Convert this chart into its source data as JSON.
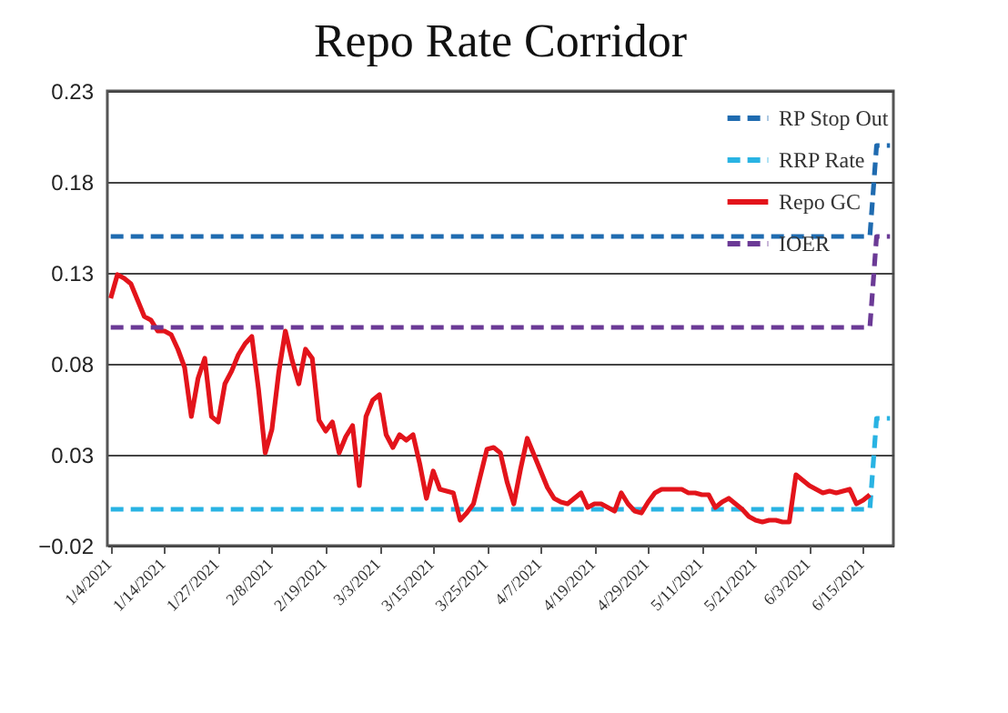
{
  "chart_data": {
    "type": "line",
    "title": "Repo Rate Corridor",
    "categories": [
      "1/4/2021",
      null,
      null,
      null,
      null,
      null,
      null,
      null,
      "1/14/2021",
      null,
      null,
      null,
      null,
      null,
      null,
      null,
      "1/27/2021",
      null,
      null,
      null,
      null,
      null,
      null,
      null,
      "2/8/2021",
      null,
      null,
      null,
      null,
      null,
      null,
      null,
      "2/19/2021",
      null,
      null,
      null,
      null,
      null,
      null,
      null,
      "3/3/2021",
      null,
      null,
      null,
      null,
      null,
      null,
      null,
      "3/15/2021",
      null,
      null,
      null,
      null,
      null,
      null,
      null,
      "3/25/2021",
      null,
      null,
      null,
      null,
      null,
      null,
      null,
      "4/7/2021",
      null,
      null,
      null,
      null,
      null,
      null,
      null,
      "4/19/2021",
      null,
      null,
      null,
      null,
      null,
      null,
      null,
      "4/29/2021",
      null,
      null,
      null,
      null,
      null,
      null,
      null,
      "5/11/2021",
      null,
      null,
      null,
      null,
      null,
      null,
      null,
      "5/21/2021",
      null,
      null,
      null,
      null,
      null,
      null,
      null,
      "6/3/2021",
      null,
      null,
      null,
      null,
      null,
      null,
      null,
      "6/15/2021",
      null,
      null,
      null,
      null
    ],
    "series": [
      {
        "name": "RP Stop Out",
        "color": "#1f6bb0",
        "line_style": "dashed",
        "values": [
          0.15,
          0.15,
          0.15,
          0.15,
          0.15,
          0.15,
          0.15,
          0.15,
          0.15,
          0.15,
          0.15,
          0.15,
          0.15,
          0.15,
          0.15,
          0.15,
          0.15,
          0.15,
          0.15,
          0.15,
          0.15,
          0.15,
          0.15,
          0.15,
          0.15,
          0.15,
          0.15,
          0.15,
          0.15,
          0.15,
          0.15,
          0.15,
          0.15,
          0.15,
          0.15,
          0.15,
          0.15,
          0.15,
          0.15,
          0.15,
          0.15,
          0.15,
          0.15,
          0.15,
          0.15,
          0.15,
          0.15,
          0.15,
          0.15,
          0.15,
          0.15,
          0.15,
          0.15,
          0.15,
          0.15,
          0.15,
          0.15,
          0.15,
          0.15,
          0.15,
          0.15,
          0.15,
          0.15,
          0.15,
          0.15,
          0.15,
          0.15,
          0.15,
          0.15,
          0.15,
          0.15,
          0.15,
          0.15,
          0.15,
          0.15,
          0.15,
          0.15,
          0.15,
          0.15,
          0.15,
          0.15,
          0.15,
          0.15,
          0.15,
          0.15,
          0.15,
          0.15,
          0.15,
          0.15,
          0.15,
          0.15,
          0.15,
          0.15,
          0.15,
          0.15,
          0.15,
          0.15,
          0.15,
          0.15,
          0.15,
          0.15,
          0.15,
          0.15,
          0.15,
          0.15,
          0.15,
          0.15,
          0.15,
          0.15,
          0.15,
          0.15,
          0.15,
          0.15,
          0.15,
          0.2,
          0.2,
          0.2
        ]
      },
      {
        "name": "RRP Rate",
        "color": "#29b3e3",
        "line_style": "dashed",
        "values": [
          0,
          0,
          0,
          0,
          0,
          0,
          0,
          0,
          0,
          0,
          0,
          0,
          0,
          0,
          0,
          0,
          0,
          0,
          0,
          0,
          0,
          0,
          0,
          0,
          0,
          0,
          0,
          0,
          0,
          0,
          0,
          0,
          0,
          0,
          0,
          0,
          0,
          0,
          0,
          0,
          0,
          0,
          0,
          0,
          0,
          0,
          0,
          0,
          0,
          0,
          0,
          0,
          0,
          0,
          0,
          0,
          0,
          0,
          0,
          0,
          0,
          0,
          0,
          0,
          0,
          0,
          0,
          0,
          0,
          0,
          0,
          0,
          0,
          0,
          0,
          0,
          0,
          0,
          0,
          0,
          0,
          0,
          0,
          0,
          0,
          0,
          0,
          0,
          0,
          0,
          0,
          0,
          0,
          0,
          0,
          0,
          0,
          0,
          0,
          0,
          0,
          0,
          0,
          0,
          0,
          0,
          0,
          0,
          0,
          0,
          0,
          0,
          0,
          0,
          0.05,
          0.05,
          0.05
        ]
      },
      {
        "name": "Repo GC",
        "color": "#e3141b",
        "line_style": "solid",
        "values": [
          0.116,
          0.129,
          0.127,
          0.124,
          0.115,
          0.106,
          0.104,
          0.098,
          0.098,
          0.096,
          0.088,
          0.078,
          0.051,
          0.072,
          0.083,
          0.051,
          0.048,
          0.069,
          0.076,
          0.085,
          0.091,
          0.095,
          0.066,
          0.031,
          0.044,
          0.075,
          0.098,
          0.082,
          0.069,
          0.088,
          0.083,
          0.049,
          0.043,
          0.048,
          0.031,
          0.04,
          0.046,
          0.013,
          0.051,
          0.06,
          0.063,
          0.041,
          0.034,
          0.041,
          0.038,
          0.041,
          0.025,
          0.006,
          0.021,
          0.011,
          0.01,
          0.009,
          -0.006,
          -0.002,
          0.003,
          0.018,
          0.033,
          0.034,
          0.031,
          0.015,
          0.003,
          0.022,
          0.039,
          0.03,
          0.021,
          0.012,
          0.006,
          0.004,
          0.003,
          0.006,
          0.009,
          0.001,
          0.003,
          0.003,
          0.001,
          -0.001,
          0.009,
          0.003,
          -0.001,
          -0.002,
          0.004,
          0.009,
          0.011,
          0.011,
          0.011,
          0.011,
          0.009,
          0.009,
          0.008,
          0.008,
          0.001,
          0.004,
          0.006,
          0.003,
          0.0,
          -0.004,
          -0.006,
          -0.007,
          -0.006,
          -0.006,
          -0.007,
          -0.007,
          0.019,
          0.016,
          0.013,
          0.011,
          0.009,
          0.01,
          0.009,
          0.01,
          0.011,
          0.003,
          0.005,
          0.008,
          null,
          null,
          null
        ]
      },
      {
        "name": "IOER",
        "color": "#6b3a96",
        "line_style": "dashed",
        "values": [
          0.1,
          0.1,
          0.1,
          0.1,
          0.1,
          0.1,
          0.1,
          0.1,
          0.1,
          0.1,
          0.1,
          0.1,
          0.1,
          0.1,
          0.1,
          0.1,
          0.1,
          0.1,
          0.1,
          0.1,
          0.1,
          0.1,
          0.1,
          0.1,
          0.1,
          0.1,
          0.1,
          0.1,
          0.1,
          0.1,
          0.1,
          0.1,
          0.1,
          0.1,
          0.1,
          0.1,
          0.1,
          0.1,
          0.1,
          0.1,
          0.1,
          0.1,
          0.1,
          0.1,
          0.1,
          0.1,
          0.1,
          0.1,
          0.1,
          0.1,
          0.1,
          0.1,
          0.1,
          0.1,
          0.1,
          0.1,
          0.1,
          0.1,
          0.1,
          0.1,
          0.1,
          0.1,
          0.1,
          0.1,
          0.1,
          0.1,
          0.1,
          0.1,
          0.1,
          0.1,
          0.1,
          0.1,
          0.1,
          0.1,
          0.1,
          0.1,
          0.1,
          0.1,
          0.1,
          0.1,
          0.1,
          0.1,
          0.1,
          0.1,
          0.1,
          0.1,
          0.1,
          0.1,
          0.1,
          0.1,
          0.1,
          0.1,
          0.1,
          0.1,
          0.1,
          0.1,
          0.1,
          0.1,
          0.1,
          0.1,
          0.1,
          0.1,
          0.1,
          0.1,
          0.1,
          0.1,
          0.1,
          0.1,
          0.1,
          0.1,
          0.1,
          0.1,
          0.1,
          0.1,
          0.15,
          0.15,
          0.15
        ]
      }
    ],
    "ylim": [
      -0.02,
      0.23
    ],
    "yticks": [
      -0.02,
      0.03,
      0.08,
      0.13,
      0.18,
      0.23
    ],
    "grid": "y",
    "legend": "top right"
  }
}
